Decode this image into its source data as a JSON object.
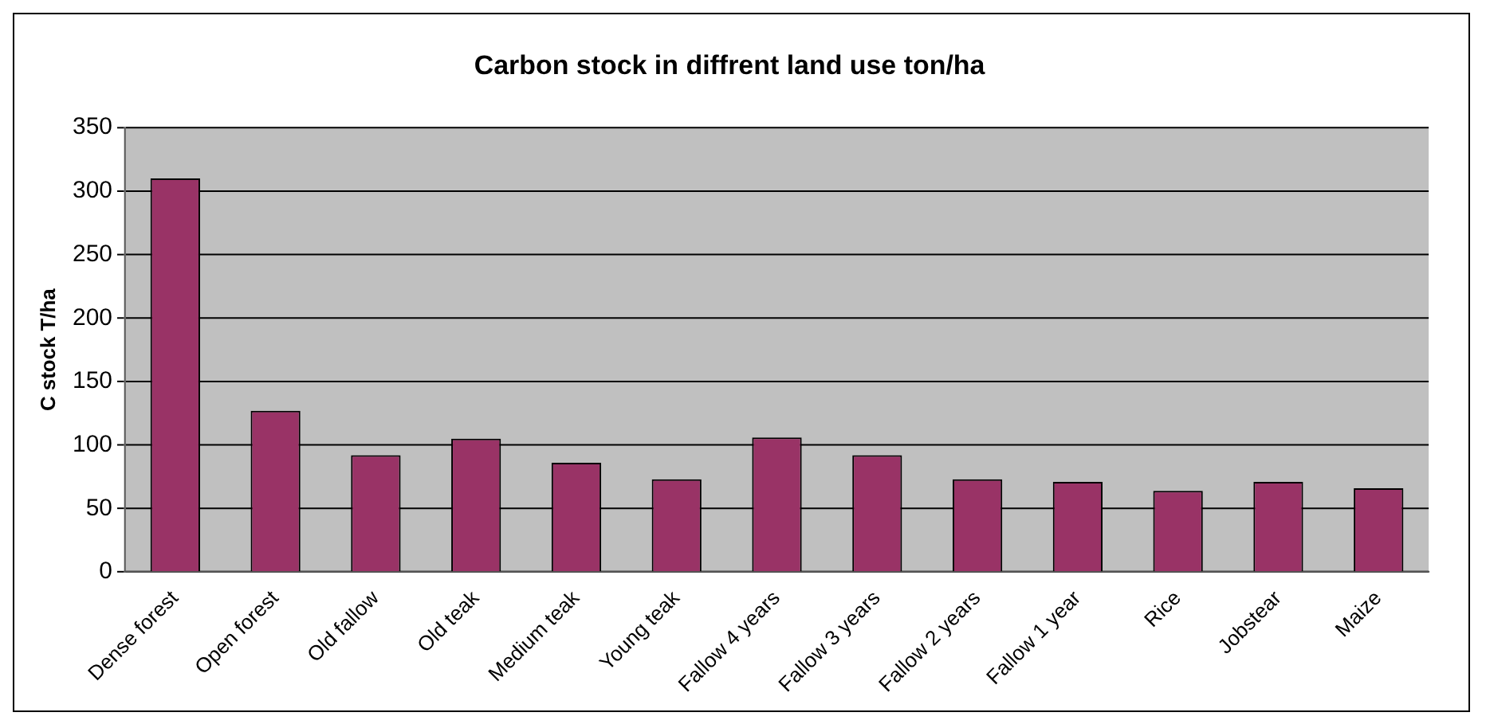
{
  "chart_data": {
    "type": "bar",
    "title": "Carbon stock in diffrent land use ton/ha",
    "ylabel": "C stock T/ha",
    "categories": [
      "Dense forest",
      "Open forest",
      "Old fallow",
      "Old teak",
      "Medium teak",
      "Young teak",
      "Fallow 4 years",
      "Fallow 3 years",
      "Fallow 2 years",
      "Fallow 1 year",
      "Rice",
      "Jobstear",
      "Maize"
    ],
    "values": [
      310,
      127,
      92,
      105,
      86,
      73,
      106,
      92,
      73,
      71,
      64,
      71,
      66
    ],
    "color": "#993366",
    "ylim": [
      0,
      350
    ],
    "yticks": [
      0,
      50,
      100,
      150,
      200,
      250,
      300,
      350
    ],
    "grid": "y",
    "legend": false
  }
}
